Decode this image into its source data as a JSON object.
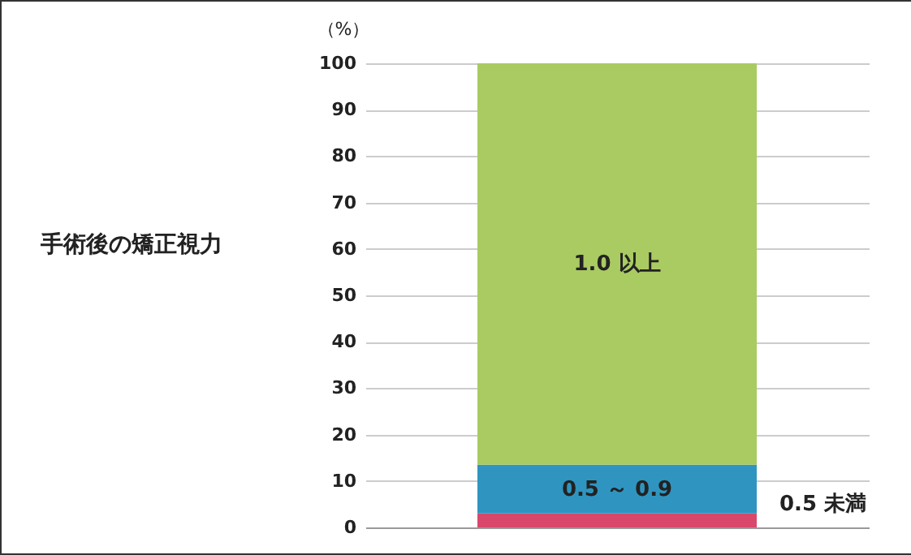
{
  "chart_data": {
    "type": "bar",
    "title": "手術後の矯正視力",
    "ylabel": "（%）",
    "categories": [
      null
    ],
    "stacked": true,
    "series": [
      {
        "name": "0.5 未満",
        "color": "#d9486b",
        "values": [
          3
        ]
      },
      {
        "name": "0.5 ～ 0.9",
        "color": "#2f95c0",
        "values": [
          10.5
        ]
      },
      {
        "name": "1.0 以上",
        "color": "#a9cb62",
        "values": [
          86.5
        ]
      }
    ],
    "ylim": [
      0,
      100
    ],
    "yticks": [
      0,
      10,
      20,
      30,
      40,
      50,
      60,
      70,
      80,
      90,
      100
    ],
    "grid": "y",
    "legend": false
  }
}
